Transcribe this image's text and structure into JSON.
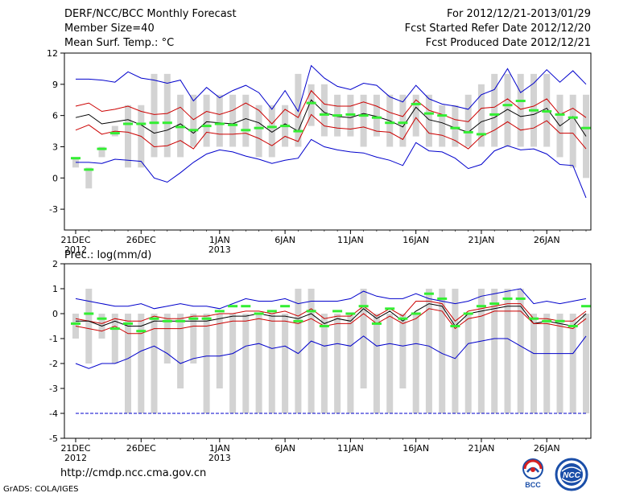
{
  "header": {
    "left": [
      "DERF/NCC/BCC Monthly Forecast",
      "Member Size=40",
      "Mean Surf. Temp.: °C"
    ],
    "right": [
      "For 2012/12/21-2013/01/29",
      "Fcst Started Refer Date 2012/12/20",
      "Fcst Produced Date 2012/12/21"
    ]
  },
  "second_label": "Prec.: log(mm/d)",
  "url": "http://cmdp.ncc.cma.gov.cn",
  "credit": "GrADS: COLA/IGES",
  "logos": {
    "bcc": "BCC",
    "ncc": "NCC"
  },
  "colors": {
    "box": "#d3d3d3",
    "outer": "#0000cc",
    "inner": "#cc0000",
    "mean": "#000000",
    "obs": "#33ee33"
  },
  "chart_data": [
    {
      "type": "line",
      "title": "Mean Surf. Temp.",
      "ylabel": "°C",
      "ylim": [
        -5,
        12
      ],
      "yticks": [
        -3,
        0,
        3,
        6,
        9,
        12
      ],
      "xticks": [
        {
          "day": 1,
          "label": "21DEC",
          "sub": "2012"
        },
        {
          "day": 6,
          "label": "26DEC",
          "sub": ""
        },
        {
          "day": 12,
          "label": "1JAN",
          "sub": "2013"
        },
        {
          "day": 17,
          "label": "6JAN",
          "sub": ""
        },
        {
          "day": 22,
          "label": "11JAN",
          "sub": ""
        },
        {
          "day": 27,
          "label": "16JAN",
          "sub": ""
        },
        {
          "day": 32,
          "label": "21JAN",
          "sub": ""
        },
        {
          "day": 37,
          "label": "26JAN",
          "sub": ""
        }
      ],
      "days": 40,
      "box_low": [
        1,
        -1,
        2,
        4,
        1,
        1,
        2,
        2,
        2,
        3,
        3,
        3,
        3,
        3,
        2,
        2,
        3,
        3,
        5,
        4,
        4,
        4,
        3,
        4,
        3,
        3,
        4,
        3,
        3,
        3,
        3,
        3,
        3,
        3,
        3,
        3,
        3,
        2,
        1,
        0
      ],
      "box_high": [
        2,
        1,
        3,
        5,
        7,
        7,
        10,
        10,
        8,
        8,
        8,
        8,
        8,
        8,
        7,
        7,
        7,
        10,
        9,
        9,
        8,
        8,
        8,
        8,
        8,
        8,
        8,
        8,
        7,
        7,
        8,
        9,
        10,
        10,
        10,
        10,
        10,
        8,
        8,
        8
      ],
      "series": [
        {
          "name": "max",
          "role": "outer",
          "values": [
            9.5,
            9.5,
            9.4,
            9.2,
            10.2,
            9.6,
            9.4,
            9.1,
            9.4,
            7.4,
            8.7,
            7.7,
            8.4,
            8.9,
            8.2,
            6.6,
            8.4,
            6.4,
            10.8,
            9.6,
            8.8,
            8.5,
            9.1,
            8.9,
            7.8,
            7.3,
            8.9,
            7.6,
            7.1,
            6.9,
            6.6,
            8.0,
            8.5,
            10.5,
            8.2,
            9.1,
            10.4,
            9.2,
            10.3,
            9.0
          ]
        },
        {
          "name": "upper",
          "role": "inner",
          "values": [
            6.9,
            7.2,
            6.4,
            6.6,
            6.9,
            6.4,
            6.1,
            6.2,
            6.8,
            5.6,
            6.4,
            6.1,
            6.5,
            7.2,
            6.5,
            5.2,
            6.6,
            5.8,
            8.4,
            7.1,
            6.9,
            6.9,
            7.3,
            6.9,
            6.3,
            5.9,
            7.5,
            6.5,
            6.1,
            5.6,
            5.4,
            6.7,
            6.8,
            7.6,
            6.6,
            6.9,
            7.6,
            6.1,
            6.7,
            5.8
          ]
        },
        {
          "name": "mean",
          "role": "mean",
          "values": [
            5.8,
            6.1,
            5.2,
            5.4,
            5.6,
            5.1,
            4.3,
            4.6,
            5.2,
            4.3,
            5.4,
            5.3,
            5.2,
            5.7,
            5.3,
            4.4,
            5.2,
            4.5,
            7.5,
            6.3,
            5.9,
            5.8,
            6.2,
            5.9,
            5.5,
            4.9,
            6.8,
            5.6,
            5.3,
            4.8,
            4.4,
            5.4,
            5.8,
            6.6,
            5.9,
            6.1,
            6.7,
            5.0,
            5.9,
            4.0
          ]
        },
        {
          "name": "lower",
          "role": "inner",
          "values": [
            4.6,
            5.1,
            4.2,
            4.5,
            4.4,
            4.0,
            3.0,
            3.1,
            3.6,
            2.8,
            4.4,
            4.2,
            4.2,
            4.3,
            3.8,
            3.1,
            4.0,
            3.5,
            6.1,
            5.0,
            4.8,
            4.7,
            4.9,
            4.5,
            4.4,
            3.7,
            5.8,
            4.3,
            4.1,
            3.6,
            2.8,
            4.0,
            4.6,
            5.4,
            4.6,
            4.8,
            5.5,
            4.3,
            4.3,
            2.8
          ]
        },
        {
          "name": "min",
          "role": "outer",
          "values": [
            1.5,
            1.5,
            1.4,
            1.8,
            1.7,
            1.6,
            0.0,
            -0.4,
            0.5,
            1.5,
            2.3,
            2.7,
            2.5,
            2.1,
            1.8,
            1.4,
            1.7,
            1.9,
            3.7,
            3.0,
            2.7,
            2.5,
            2.4,
            2.0,
            1.7,
            1.2,
            3.4,
            2.6,
            2.5,
            1.9,
            0.9,
            1.3,
            2.6,
            3.1,
            2.7,
            2.8,
            2.3,
            1.3,
            1.2,
            -1.9
          ]
        },
        {
          "name": "observed",
          "role": "obs",
          "values": [
            1.9,
            0.8,
            2.8,
            4.3,
            5.2,
            5.2,
            5.3,
            5.3,
            4.9,
            4.6,
            5.0,
            5.2,
            5.1,
            4.6,
            4.8,
            4.9,
            5.0,
            4.5,
            7.2,
            6.1,
            6.0,
            6.1,
            6.0,
            5.8,
            5.3,
            5.3,
            7.1,
            6.2,
            6.0,
            4.8,
            4.4,
            4.2,
            6.1,
            7.0,
            7.4,
            6.5,
            6.4,
            6.1,
            5.8,
            4.8
          ]
        }
      ]
    },
    {
      "type": "line",
      "title": "Prec.",
      "ylabel": "log(mm/d)",
      "ylim": [
        -5,
        2
      ],
      "yticks": [
        -5,
        -4,
        -3,
        -2,
        -1,
        0,
        1,
        2
      ],
      "xticks": [
        {
          "day": 1,
          "label": "21DEC",
          "sub": "2012"
        },
        {
          "day": 6,
          "label": "26DEC",
          "sub": ""
        },
        {
          "day": 12,
          "label": "1JAN",
          "sub": "2013"
        },
        {
          "day": 17,
          "label": "6JAN",
          "sub": ""
        },
        {
          "day": 22,
          "label": "11JAN",
          "sub": ""
        },
        {
          "day": 27,
          "label": "16JAN",
          "sub": ""
        },
        {
          "day": 32,
          "label": "21JAN",
          "sub": ""
        },
        {
          "day": 37,
          "label": "26JAN",
          "sub": ""
        }
      ],
      "days": 40,
      "box_low": [
        -1,
        -2,
        -1,
        -2,
        -4,
        -4,
        -4,
        -2,
        -3,
        -2,
        -4,
        -3,
        -4,
        -4,
        -4,
        -4,
        -4,
        -4,
        -4,
        -4,
        -4,
        -4,
        -3,
        -4,
        -4,
        -3,
        -4,
        -4,
        -4,
        -4,
        -4,
        -4,
        -4,
        -4,
        -4,
        -4,
        -4,
        -4,
        -4,
        -4
      ],
      "box_high": [
        0,
        1,
        0,
        0,
        0,
        0,
        0,
        0,
        0,
        0,
        0,
        0,
        0,
        0,
        0,
        0,
        0,
        1,
        1,
        0,
        0,
        0,
        1,
        0,
        0,
        0,
        0,
        1,
        1,
        1,
        0,
        1,
        1,
        1,
        1,
        0,
        0,
        0,
        0,
        0
      ],
      "series": [
        {
          "name": "max",
          "role": "outer",
          "values": [
            0.6,
            0.5,
            0.4,
            0.3,
            0.3,
            0.4,
            0.2,
            0.3,
            0.4,
            0.3,
            0.3,
            0.2,
            0.4,
            0.6,
            0.5,
            0.5,
            0.6,
            0.4,
            0.5,
            0.5,
            0.5,
            0.6,
            0.9,
            0.7,
            0.6,
            0.6,
            0.8,
            0.6,
            0.5,
            0.4,
            0.5,
            0.7,
            0.8,
            0.9,
            1.0,
            0.4,
            0.5,
            0.4,
            0.5,
            0.6
          ]
        },
        {
          "name": "upper",
          "role": "inner",
          "values": [
            -0.2,
            -0.3,
            -0.4,
            -0.2,
            -0.3,
            -0.3,
            -0.1,
            -0.2,
            -0.2,
            -0.1,
            -0.1,
            0.0,
            0.0,
            0.1,
            0.1,
            0.0,
            0.1,
            -0.1,
            0.2,
            -0.2,
            -0.1,
            -0.1,
            0.3,
            -0.1,
            0.2,
            -0.1,
            0.5,
            0.5,
            0.4,
            -0.3,
            0.1,
            0.2,
            0.3,
            0.4,
            0.4,
            -0.2,
            -0.2,
            -0.3,
            -0.3,
            0.1
          ]
        },
        {
          "name": "mean",
          "role": "mean",
          "values": [
            -0.3,
            -0.3,
            -0.5,
            -0.3,
            -0.5,
            -0.5,
            -0.3,
            -0.3,
            -0.3,
            -0.3,
            -0.3,
            -0.2,
            -0.1,
            -0.1,
            0.0,
            -0.1,
            -0.1,
            -0.2,
            0.0,
            -0.4,
            -0.2,
            -0.3,
            0.2,
            -0.2,
            0.1,
            -0.3,
            0.1,
            0.4,
            0.3,
            -0.5,
            0.0,
            0.1,
            0.2,
            0.3,
            0.3,
            -0.4,
            -0.3,
            -0.4,
            -0.5,
            0.0
          ]
        },
        {
          "name": "lower",
          "role": "inner",
          "values": [
            -0.5,
            -0.6,
            -0.7,
            -0.5,
            -0.8,
            -0.8,
            -0.6,
            -0.6,
            -0.6,
            -0.5,
            -0.5,
            -0.4,
            -0.3,
            -0.3,
            -0.2,
            -0.3,
            -0.3,
            -0.4,
            -0.2,
            -0.5,
            -0.4,
            -0.4,
            0.0,
            -0.4,
            -0.1,
            -0.4,
            -0.2,
            0.2,
            0.1,
            -0.6,
            -0.2,
            -0.1,
            0.1,
            0.1,
            0.1,
            -0.4,
            -0.4,
            -0.5,
            -0.6,
            -0.2
          ]
        },
        {
          "name": "min",
          "role": "outer",
          "values": [
            -2.0,
            -2.2,
            -2.0,
            -2.0,
            -1.8,
            -1.5,
            -1.3,
            -1.6,
            -2.0,
            -1.8,
            -1.7,
            -1.7,
            -1.6,
            -1.3,
            -1.2,
            -1.4,
            -1.3,
            -1.6,
            -1.1,
            -1.3,
            -1.2,
            -1.3,
            -0.9,
            -1.3,
            -1.2,
            -1.3,
            -1.2,
            -1.3,
            -1.6,
            -1.8,
            -1.2,
            -1.1,
            -1.0,
            -1.0,
            -1.3,
            -1.6,
            -1.6,
            -1.6,
            -1.6,
            -0.9
          ]
        },
        {
          "name": "observed",
          "role": "obs",
          "values": [
            -0.4,
            0.0,
            -0.2,
            -0.6,
            -0.4,
            -0.7,
            -0.2,
            -0.3,
            -0.3,
            -0.2,
            -0.2,
            0.1,
            0.3,
            0.3,
            0.0,
            0.1,
            0.3,
            -0.3,
            0.1,
            -0.5,
            0.1,
            0.0,
            0.3,
            -0.4,
            0.2,
            -0.2,
            0.0,
            0.8,
            0.6,
            -0.5,
            0.0,
            0.3,
            0.4,
            0.6,
            0.6,
            -0.2,
            -0.3,
            -0.3,
            -0.5,
            0.3
          ]
        }
      ]
    }
  ]
}
